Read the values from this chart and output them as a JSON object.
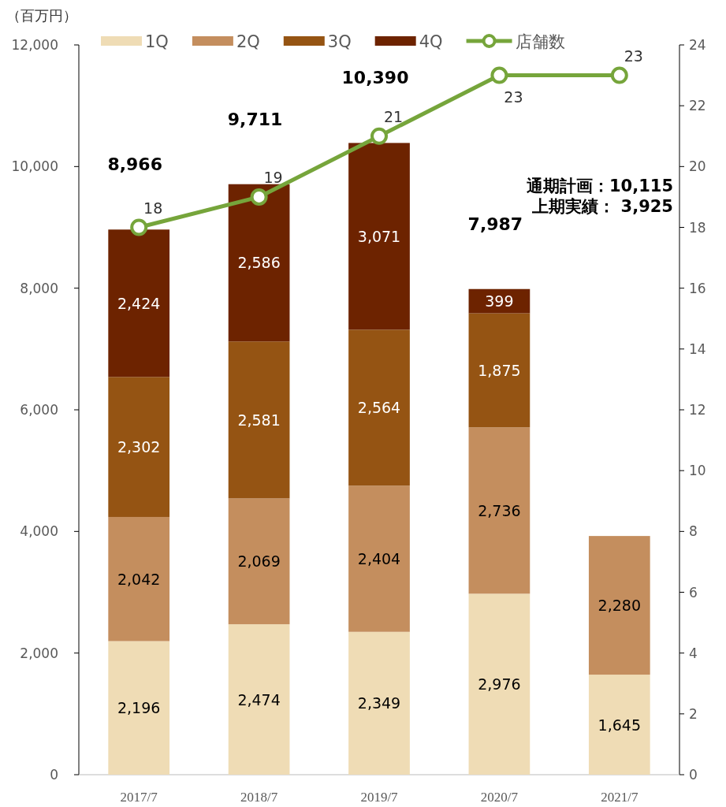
{
  "chart_data": {
    "type": "bar",
    "stacked": true,
    "ylabel": "（百万円）",
    "categories": [
      "2017/7",
      "2018/7",
      "2019/7",
      "2020/7",
      "2021/7"
    ],
    "series": [
      {
        "name": "1Q",
        "color": "#efdcb5",
        "values": [
          2196,
          2474,
          2349,
          2976,
          1645
        ],
        "value_labels": [
          "2,196",
          "2,474",
          "2,349",
          "2,976",
          "1,645"
        ]
      },
      {
        "name": "2Q",
        "color": "#c48e5e",
        "values": [
          2042,
          2069,
          2404,
          2736,
          2280
        ],
        "value_labels": [
          "2,042",
          "2,069",
          "2,404",
          "2,736",
          "2,280"
        ]
      },
      {
        "name": "3Q",
        "color": "#955413",
        "values": [
          2302,
          2581,
          2564,
          1875,
          null
        ],
        "value_labels": [
          "2,302",
          "2,581",
          "2,564",
          "1,875",
          null
        ]
      },
      {
        "name": "4Q",
        "color": "#6d2300",
        "values": [
          2424,
          2586,
          3071,
          399,
          null
        ],
        "value_labels": [
          "2,424",
          "2,586",
          "3,071",
          "399",
          null
        ]
      },
      {
        "name": "店舗数",
        "type": "line",
        "axis": "y2",
        "color": "#76a53b",
        "marker": "circle",
        "values": [
          18,
          19,
          21,
          23,
          23
        ],
        "value_labels": [
          "18",
          "19",
          "21",
          "23",
          "23"
        ]
      }
    ],
    "totals": [
      "8,966",
      "9,711",
      "10,390",
      "7,987",
      null
    ],
    "ylim": [
      0,
      12000
    ],
    "yticks": [
      {
        "value": 0,
        "label": "0"
      },
      {
        "value": 2000,
        "label": "2,000"
      },
      {
        "value": 4000,
        "label": "4,000"
      },
      {
        "value": 6000,
        "label": "6,000"
      },
      {
        "value": 8000,
        "label": "8,000"
      },
      {
        "value": 10000,
        "label": "10,000"
      },
      {
        "value": 12000,
        "label": "12,000"
      }
    ],
    "y2lim": [
      0,
      24
    ],
    "y2ticks": [
      0,
      2,
      4,
      6,
      8,
      10,
      12,
      14,
      16,
      18,
      20,
      22,
      24
    ],
    "legend": "top",
    "grid": false,
    "annotations": [
      "通期計画：10,115",
      "上期実績：  3,925"
    ]
  }
}
